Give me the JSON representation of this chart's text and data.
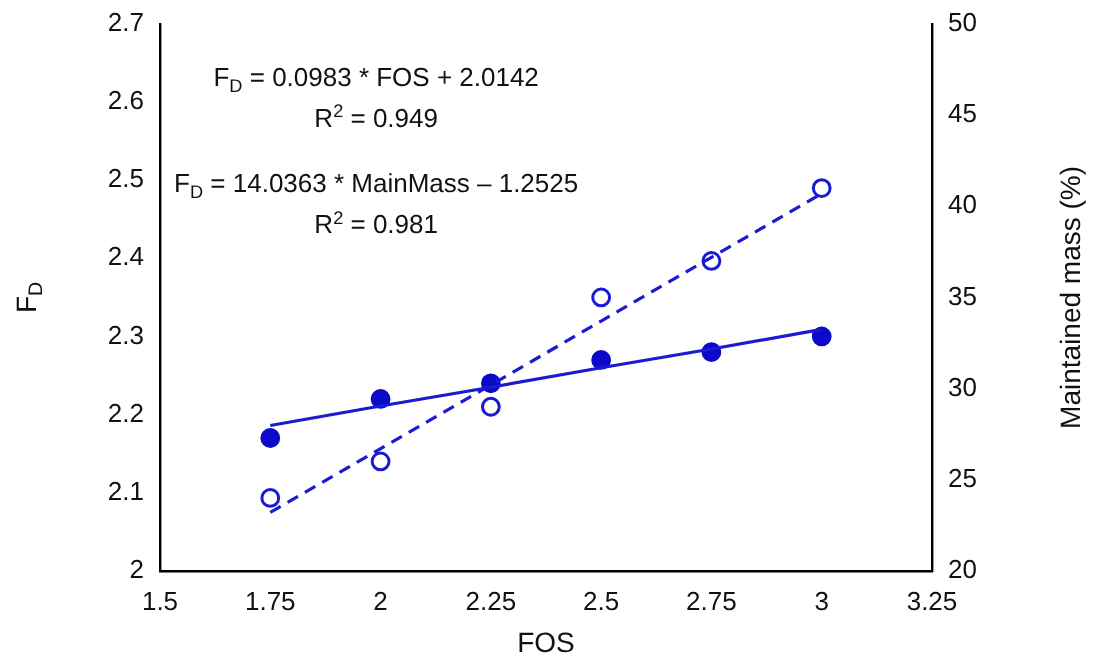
{
  "chart_data": {
    "type": "scatter",
    "xlabel": "FOS",
    "ylabel": "F$_{D}$",
    "y2label": "Maintained mass (%)",
    "xlim": [
      1.5,
      3.25
    ],
    "xticks": [
      1.5,
      1.75,
      2,
      2.25,
      2.5,
      2.75,
      3,
      3.25
    ],
    "ylim": [
      2,
      2.7
    ],
    "yticks": [
      2,
      2.1,
      2.2,
      2.3,
      2.4,
      2.5,
      2.6,
      2.7
    ],
    "y2lim": [
      20,
      50
    ],
    "y2ticks": [
      20,
      25,
      30,
      35,
      40,
      45,
      50
    ],
    "grid": false,
    "legend": false,
    "marker": "circle",
    "x": [
      1.75,
      2,
      2.25,
      2.5,
      2.75,
      3
    ],
    "series": [
      {
        "type": "scatter",
        "color": "#0a0ac8",
        "values": [
          2.17,
          2.22,
          2.24,
          2.27,
          2.28,
          2.3
        ]
      },
      {
        "type": "scatter",
        "color": "#1a1ad0",
        "axis": "y2",
        "values": [
          24,
          26,
          29,
          35,
          37,
          41
        ]
      },
      {
        "type": "line",
        "color": "#1a1ad0",
        "values": [
          2.186,
          2.211,
          2.235,
          2.26,
          2.284,
          2.309
        ],
        "marker": "none",
        "line_style": "solid"
      },
      {
        "type": "line",
        "color": "#1a1ad0",
        "axis": "y2",
        "values": [
          23.2,
          26.7,
          30.2,
          33.7,
          37.2,
          40.7
        ],
        "marker": "none",
        "line_style": "dashed"
      }
    ],
    "annotations": [
      "F$_{D}$ = 0.0983 * FOS + 2.0142",
      "R$^{2}$ = 0.949",
      "F$_{D}$ = 14.0363 * MainMass – 1.2525",
      "R$^{2}$ = 0.981"
    ]
  }
}
